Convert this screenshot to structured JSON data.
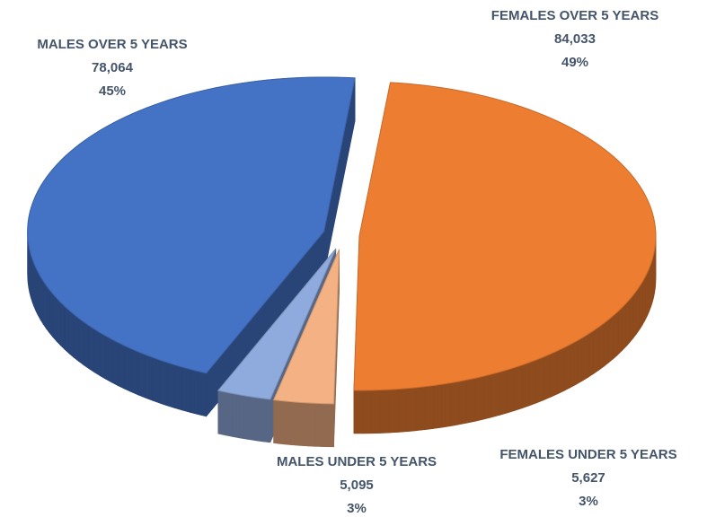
{
  "chart_data": {
    "type": "pie",
    "categories": [
      "FEMALES OVER 5 YEARS",
      "FEMALES UNDER 5 YEARS",
      "MALES UNDER 5 YEARS",
      "MALES OVER 5 YEARS"
    ],
    "values": [
      84033,
      5627,
      5095,
      78064
    ],
    "value_labels": [
      "84,033",
      "5,627",
      "5,095",
      "78,064"
    ],
    "percentages": [
      {
        "value": 49,
        "label": "49%"
      },
      {
        "value": 3,
        "label": "3%"
      },
      {
        "value": 3,
        "label": "3%"
      },
      {
        "value": 45,
        "label": "45%"
      }
    ],
    "colors": [
      "#ed7d31",
      "#f4b183",
      "#8faadc",
      "#4472c4"
    ]
  }
}
